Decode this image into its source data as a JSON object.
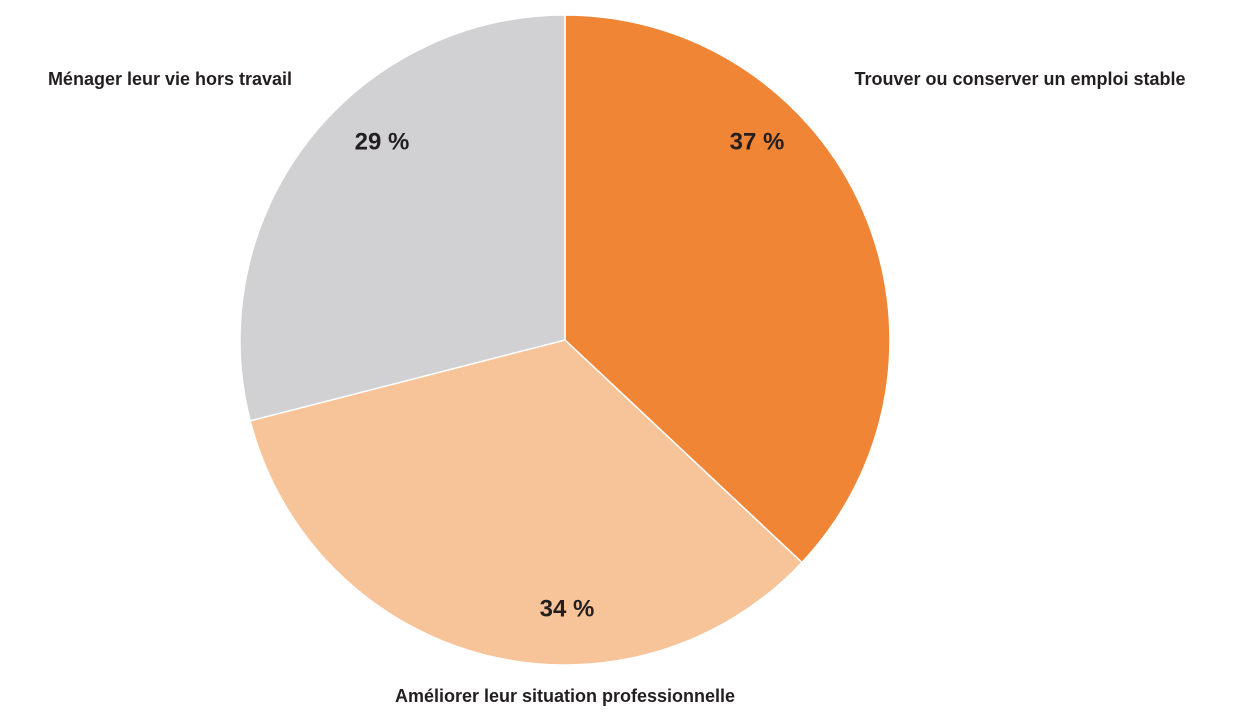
{
  "chart_data": {
    "type": "pie",
    "categories": [
      "Trouver ou conserver un emploi stable",
      "Améliorer leur situation professionnelle",
      "Ménager leur vie hors travail"
    ],
    "values": [
      37,
      34,
      29
    ],
    "value_labels": [
      "37 %",
      "34 %",
      "29 %"
    ],
    "colors": [
      "#f08536",
      "#f7c398",
      "#d1d1d3"
    ]
  }
}
